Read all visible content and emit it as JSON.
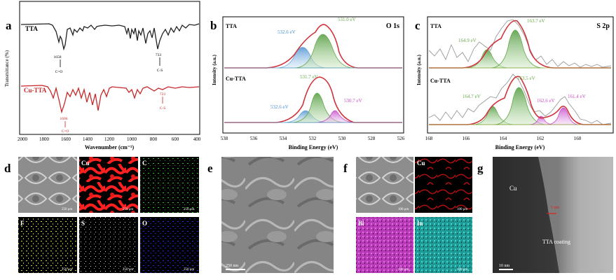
{
  "panel_letters": {
    "a": "a",
    "b": "b",
    "c": "c",
    "d": "d",
    "e": "e",
    "f": "f",
    "g": "g"
  },
  "colors": {
    "tta": "#222222",
    "cu_tta": "#c8282a",
    "xps_envelope": "#d1323a",
    "xps_raw": "#888888",
    "green": "#6aa84f",
    "blue": "#6ea8d8",
    "magenta": "#c850c8",
    "baseline": "#5aa0c8"
  },
  "panel_a": {
    "ylabel": "Transmittance (%)",
    "xlabel": "Wavenumber (cm⁻¹)",
    "series_labels": [
      "TTA",
      "Cu-TTA"
    ],
    "ticks": [
      "2000",
      "1800",
      "1600",
      "1400",
      "1200",
      "1000",
      "800",
      "600",
      "400"
    ],
    "annotations": [
      {
        "wavenumber": "1658",
        "bond": "C=O"
      },
      {
        "wavenumber": "733",
        "bond": "C-S"
      },
      {
        "wavenumber": "1606",
        "bond": "C=O"
      },
      {
        "wavenumber": "723",
        "bond": "C-S"
      }
    ]
  },
  "panel_b": {
    "title": "O 1s",
    "ylabel": "Intensity (a.u.)",
    "xlabel": "Binding Energy (eV)",
    "ticks": [
      "538",
      "536",
      "534",
      "532",
      "530",
      "528",
      "526"
    ],
    "tta_label": "TTA",
    "tta_peaks": [
      "532.6 eV",
      "531.0 eV"
    ],
    "cutta_label": "Cu-TTA",
    "cutta_peaks": [
      "531.7 eV",
      "532.6 eV",
      "530.7 eV"
    ]
  },
  "panel_c": {
    "title": "S 2p",
    "ylabel": "Intensity (a.u.)",
    "xlabel": "Binding Energy (eV)",
    "ticks": [
      "168",
      "166",
      "164",
      "162",
      "160"
    ],
    "tta_label": "TTA",
    "tta_peaks": [
      "164.9 eV",
      "163.7 eV"
    ],
    "cutta_label": "Cu-TTA",
    "cutta_peaks": [
      "164.7 eV",
      "163.5 eV",
      "162.6 eV",
      "161.4 eV"
    ]
  },
  "panel_d": {
    "tiles": [
      {
        "label": "",
        "scale": "250 μm"
      },
      {
        "label": "Cu",
        "scale": "250 μm"
      },
      {
        "label": "C",
        "scale": "250 μm"
      },
      {
        "label": "F",
        "scale": "250 μm"
      },
      {
        "label": "S",
        "scale": "250 μm"
      },
      {
        "label": "O",
        "scale": "250 μm"
      }
    ]
  },
  "panel_e": {
    "scale": "250 nm"
  },
  "panel_f": {
    "tiles": [
      {
        "label": "",
        "scale": "100 μm"
      },
      {
        "label": "Cu",
        "scale": "100 μm"
      },
      {
        "label": "Bi",
        "scale": "100 μm"
      },
      {
        "label": "In",
        "scale": "100 μm"
      }
    ]
  },
  "panel_g": {
    "cu_label": "Cu",
    "thickness": "5 nm",
    "coating_label": "TTA coating",
    "scale": "10 nm"
  }
}
